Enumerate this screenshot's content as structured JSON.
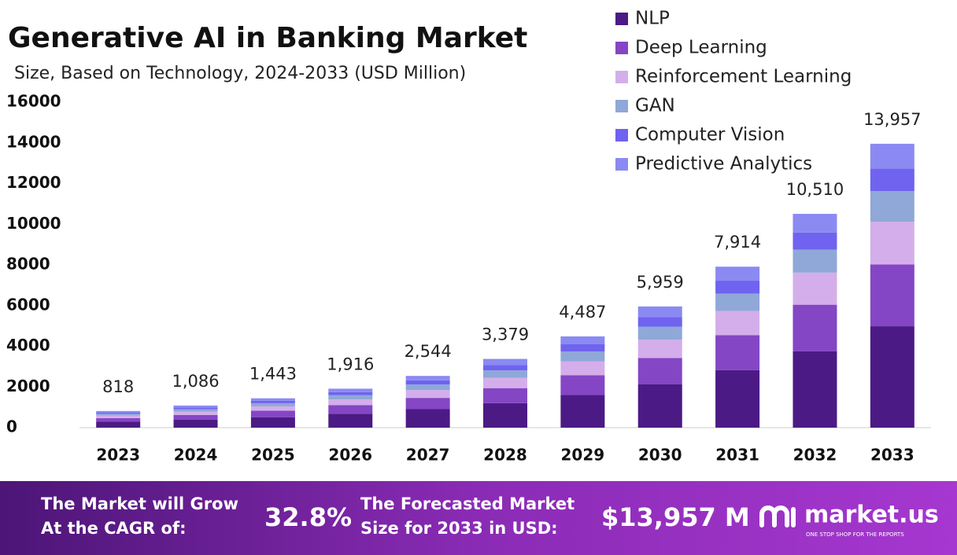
{
  "chart_data": {
    "type": "stacked-bar",
    "title": "Generative AI in Banking Market",
    "subtitle": "Size, Based on Technology, 2024-2033 (USD Million)",
    "categories": [
      "2023",
      "2024",
      "2025",
      "2026",
      "2027",
      "2028",
      "2029",
      "2030",
      "2031",
      "2032",
      "2033"
    ],
    "series": [
      {
        "name": "NLP",
        "color": "#4b1a84",
        "values": [
          292,
          388,
          515,
          684,
          908,
          1206,
          1602,
          2127,
          2825,
          3752,
          4983
        ]
      },
      {
        "name": "Deep Learning",
        "color": "#8446c4",
        "values": [
          178,
          237,
          315,
          418,
          555,
          737,
          978,
          1299,
          1725,
          2291,
          3043
        ]
      },
      {
        "name": "Reinforcement Learning",
        "color": "#d4aeea",
        "values": [
          123,
          163,
          216,
          287,
          382,
          507,
          673,
          894,
          1187,
          1577,
          2094
        ]
      },
      {
        "name": "GAN",
        "color": "#8fa8d8",
        "values": [
          88,
          117,
          156,
          207,
          275,
          365,
          485,
          644,
          855,
          1135,
          1507
        ]
      },
      {
        "name": "Computer Vision",
        "color": "#6f63ef",
        "values": [
          65,
          87,
          115,
          153,
          204,
          270,
          359,
          477,
          633,
          841,
          1117
        ]
      },
      {
        "name": "Predictive Analytics",
        "color": "#8b8af2",
        "values": [
          72,
          94,
          126,
          167,
          220,
          294,
          390,
          518,
          689,
          914,
          1213
        ]
      }
    ],
    "totals": [
      818,
      1086,
      1443,
      1916,
      2544,
      3379,
      4487,
      5959,
      7914,
      10510,
      13957
    ],
    "total_labels": [
      "818",
      "1,086",
      "1,443",
      "1,916",
      "2,544",
      "3,379",
      "4,487",
      "5,959",
      "7,914",
      "10,510",
      "13,957"
    ],
    "ylim": [
      0,
      16000
    ],
    "yticks": [
      0,
      2000,
      4000,
      6000,
      8000,
      10000,
      12000,
      14000,
      16000
    ],
    "grid": false,
    "legend": "top-right"
  },
  "footer": {
    "cagr_text": "The Market will Grow At the CAGR of:",
    "cagr_value": "32.8%",
    "forecast_text": "The Forecasted Market Size for 2033 in USD:",
    "forecast_value": "$13,957 M",
    "brand": "market.us",
    "tagline": "ONE STOP SHOP FOR THE REPORTS"
  }
}
